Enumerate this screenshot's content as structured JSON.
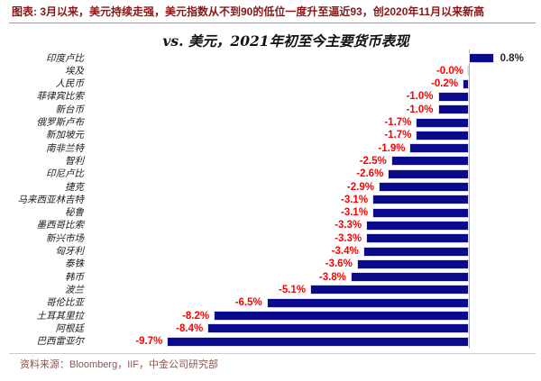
{
  "header": {
    "note": "图表: 3月以来，美元持续走强，美元指数从不到90的低位一度升至逼近93，创2020年11月以来新高"
  },
  "chart_data": {
    "type": "bar",
    "orientation": "horizontal",
    "title": "vs. 美元，2021年初至今主要货币表现",
    "xlabel": "",
    "ylabel": "",
    "unit": "%",
    "xlim": [
      -10.5,
      1.5
    ],
    "grid": false,
    "legend": "none",
    "categories": [
      "印度卢比",
      "埃及",
      "人民币",
      "菲律宾比索",
      "新台币",
      "俄罗斯卢布",
      "新加坡元",
      "南非兰特",
      "智利",
      "印尼卢比",
      "捷克",
      "马来西亚林吉特",
      "秘鲁",
      "墨西哥比索",
      "新兴市场",
      "匈牙利",
      "泰铢",
      "韩币",
      "波兰",
      "哥伦比亚",
      "土耳其里拉",
      "阿根廷",
      "巴西雷亚尔"
    ],
    "values": [
      0.8,
      -0.0,
      -0.2,
      -1.0,
      -1.0,
      -1.7,
      -1.7,
      -1.9,
      -2.5,
      -2.6,
      -2.9,
      -3.1,
      -3.1,
      -3.3,
      -3.3,
      -3.4,
      -3.6,
      -3.8,
      -5.1,
      -6.5,
      -8.2,
      -8.4,
      -9.7
    ],
    "labels": [
      "0.8%",
      "-0.0%",
      "-0.2%",
      "-1.0%",
      "-1.0%",
      "-1.7%",
      "-1.7%",
      "-1.9%",
      "-2.5%",
      "-2.6%",
      "-2.9%",
      "-3.1%",
      "-3.1%",
      "-3.3%",
      "-3.3%",
      "-3.4%",
      "-3.6%",
      "-3.8%",
      "-5.1%",
      "-6.5%",
      "-8.2%",
      "-8.4%",
      "-9.7%"
    ],
    "bar_color": "#0a0a8c",
    "label_colors": {
      "negative": "#ff0000",
      "positive": "#262626"
    }
  },
  "source": "资料来源：Bloomberg，IIF，中金公司研究部",
  "colors": {
    "header_red": "#8b1515",
    "rule_red": "#c09090",
    "source_red": "#8d5452",
    "axis_gray": "#b0b0b0",
    "background": "#ffffff"
  }
}
